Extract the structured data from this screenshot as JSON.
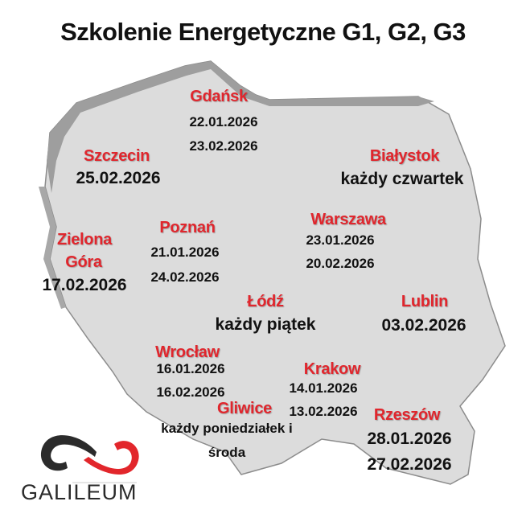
{
  "title": "Szkolenie Energetyczne G1, G2, G3",
  "colors": {
    "city_label": "#e0262d",
    "map_fill": "#dcdcdc",
    "coast": "#9a9a9a",
    "logo_dark": "#2b2b2b",
    "logo_red": "#e2262b"
  },
  "cities": [
    {
      "name": "Gdańsk",
      "dates": [
        "22.01.2026",
        "23.02.2026"
      ]
    },
    {
      "name": "Szczecin",
      "dates": [
        "25.02.2026"
      ]
    },
    {
      "name": "Białystok",
      "dates": [
        "każdy czwartek"
      ]
    },
    {
      "name": "Warszawa",
      "dates": [
        "23.01.2026",
        "20.02.2026"
      ]
    },
    {
      "name": "Poznań",
      "dates": [
        "21.01.2026",
        "24.02.2026"
      ]
    },
    {
      "name_lines": [
        "Zielona",
        "Góra"
      ],
      "dates": [
        "17.02.2026"
      ]
    },
    {
      "name": "Łódź",
      "dates": [
        "każdy piątek"
      ]
    },
    {
      "name": "Lublin",
      "dates": [
        "03.02.2026"
      ]
    },
    {
      "name": "Wrocław",
      "dates": [
        "16.01.2026",
        "16.02.2026"
      ]
    },
    {
      "name": "Krakow",
      "dates": [
        "14.01.2026",
        "13.02.2026"
      ]
    },
    {
      "name": "Gliwice",
      "dates": [
        "każdy poniedziałek i",
        "środa"
      ]
    },
    {
      "name": "Rzeszów",
      "dates": [
        "28.01.2026",
        "27.02.2026"
      ]
    }
  ],
  "logo": {
    "text": "GALILEUM"
  }
}
